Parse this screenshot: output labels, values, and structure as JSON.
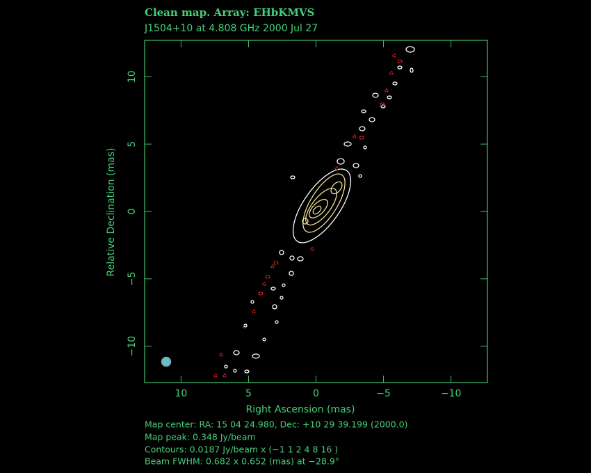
{
  "chart_data": {
    "type": "contour",
    "title": "Clean map.  Array: EHbKMVS",
    "subtitle": "J1504+10 at 4.808 GHz 2000 Jul 27",
    "x_label": "Right Ascension  (mas)",
    "y_label": "Relative Declination  (mas)",
    "xlim": [
      12.7,
      -12.7
    ],
    "ylim": [
      -12.7,
      12.7
    ],
    "xticks": [
      10,
      5,
      0,
      {
        "value": -5,
        "label": "−5"
      },
      {
        "value": -10,
        "label": "−10"
      }
    ],
    "yticks": [
      {
        "value": -10,
        "label": "−10"
      },
      {
        "value": -5,
        "label": "−5"
      },
      0,
      5,
      10
    ],
    "notes": [
      "Map center:  RA: 15 04 24.980,  Dec: +10 29 39.199 (2000.0)",
      "Map peak: 0.348 Jy/beam",
      "Contours: 0.0187 Jy/beam x (−1 1 2 4 8 16 )",
      "Beam FWHM: 0.682 x 0.652 (mas) at −28.9°"
    ],
    "frame_color": "#3fc46e"
  }
}
